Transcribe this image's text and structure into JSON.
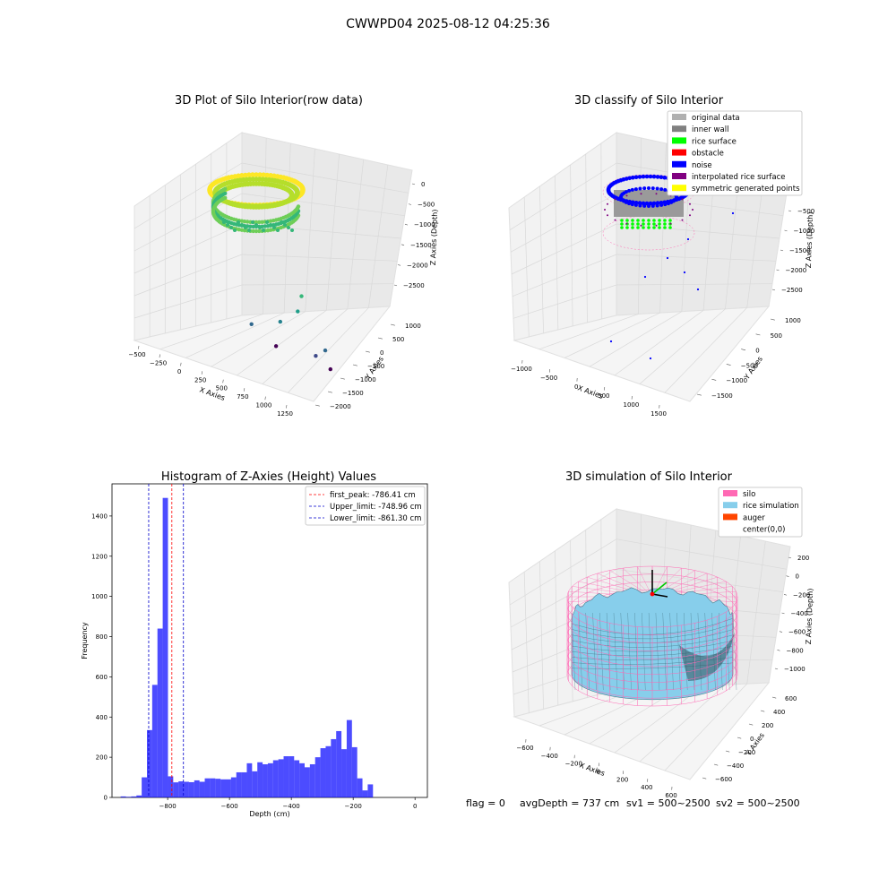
{
  "suptitle": "CWWPD04 2025-08-12 04:25:36",
  "footer": {
    "flag": "flag = 0",
    "avg_depth": "avgDepth = 737 cm",
    "sv1": "sv1 = 500~2500",
    "sv2": "sv2 = 500~2500"
  },
  "chart_data": [
    {
      "type": "scatter",
      "title": "3D Plot of Silo Interior(row data)",
      "xlabel": "X Axies",
      "ylabel": "Y Axies",
      "zlabel": "Z Axies (Depth)",
      "x_ticks": [
        "−500",
        "−250",
        "0",
        "250",
        "500",
        "750",
        "1000",
        "1250"
      ],
      "y_ticks": [
        "1000",
        "500",
        "0",
        "−500",
        "−1000",
        "−1500",
        "−2000"
      ],
      "z_ticks": [
        "0",
        "−500",
        "−1000",
        "−1500",
        "−2000",
        "−2500"
      ],
      "xlim": [
        -500,
        1350
      ],
      "ylim": [
        -2000,
        1200
      ],
      "zlim": [
        -2700,
        0
      ],
      "colormap": "viridis (by depth)",
      "outliers": [
        {
          "x": 1250,
          "y": 500,
          "z": -800
        },
        {
          "x": 1000,
          "y": 0,
          "z": -1300
        },
        {
          "x": 700,
          "y": -200,
          "z": -1700
        },
        {
          "x": 1100,
          "y": -600,
          "z": -2050
        },
        {
          "x": 900,
          "y": -800,
          "z": -2300
        },
        {
          "x": 300,
          "y": -300,
          "z": -2000
        },
        {
          "x": 200,
          "y": -1300,
          "z": -2600
        },
        {
          "x": 800,
          "y": -1500,
          "z": -2700
        }
      ]
    },
    {
      "type": "scatter",
      "title": "3D classify of Silo Interior",
      "xlabel": "X Axies",
      "ylabel": "Y Axies",
      "zlabel": "Z Axies (Depth)",
      "x_ticks": [
        "−1000",
        "−500",
        "0",
        "500",
        "1000",
        "1500"
      ],
      "y_ticks": [
        "1000",
        "500",
        "0",
        "−500",
        "−1000",
        "−1500"
      ],
      "z_ticks": [
        "−500",
        "−1000",
        "−1500",
        "−2000",
        "−2500"
      ],
      "xlim": [
        -1100,
        1700
      ],
      "ylim": [
        -1700,
        1200
      ],
      "zlim": [
        -2700,
        -200
      ],
      "legend_position": "upper-right",
      "legend": [
        {
          "label": "original data",
          "color": "#b0b0b0"
        },
        {
          "label": "inner wall",
          "color": "#808080"
        },
        {
          "label": "rice surface",
          "color": "#00ff00"
        },
        {
          "label": "obstacle",
          "color": "#ff0000"
        },
        {
          "label": "noise",
          "color": "#0000ff"
        },
        {
          "label": "interpolated rice surface",
          "color": "#800080"
        },
        {
          "label": "symmetric generated points",
          "color": "#ffff00"
        }
      ]
    },
    {
      "type": "bar",
      "title": "Histogram of Z-Axies (Height) Values",
      "xlabel": "Depth (cm)",
      "ylabel": "Frequency",
      "xlim": [
        -980,
        40
      ],
      "ylim": [
        0,
        1560
      ],
      "x_ticks": [
        -800,
        -600,
        -400,
        -200,
        0
      ],
      "y_ticks": [
        0,
        200,
        400,
        600,
        800,
        1000,
        1200,
        1400
      ],
      "bar_color": "#0000ff",
      "bin_width": 17,
      "bin_starts": [
        -952,
        -935,
        -918,
        -901,
        -884,
        -867,
        -850,
        -833,
        -816,
        -799,
        -782,
        -765,
        -748,
        -731,
        -714,
        -697,
        -680,
        -663,
        -646,
        -629,
        -612,
        -595,
        -578,
        -561,
        -544,
        -527,
        -510,
        -493,
        -476,
        -459,
        -442,
        -425,
        -408,
        -391,
        -374,
        -357,
        -340,
        -323,
        -306,
        -289,
        -272,
        -255,
        -238,
        -221,
        -204,
        -187,
        -170,
        -153,
        -136,
        -119,
        -102,
        -85,
        -68,
        -51,
        -34,
        -17
      ],
      "values": [
        5,
        3,
        5,
        10,
        100,
        335,
        560,
        840,
        1490,
        105,
        75,
        80,
        78,
        76,
        85,
        78,
        95,
        95,
        93,
        90,
        90,
        100,
        125,
        125,
        170,
        130,
        175,
        165,
        170,
        185,
        190,
        205,
        205,
        185,
        170,
        150,
        165,
        200,
        245,
        255,
        290,
        330,
        240,
        385,
        250,
        95,
        35,
        65,
        0,
        0,
        0,
        0,
        0,
        0,
        0,
        0
      ],
      "lines": [
        {
          "label": "first_peak: -786.41 cm",
          "x": -786.41,
          "color": "#ff0000"
        },
        {
          "label": "Upper_limit: -748.96 cm",
          "x": -748.96,
          "color": "#0000cc"
        },
        {
          "label": "Lower_limit: -861.30 cm",
          "x": -861.3,
          "color": "#0000cc"
        }
      ],
      "legend_position": "upper-right"
    },
    {
      "type": "area",
      "title": "3D simulation of Silo Interior",
      "xlabel": "X Axies",
      "ylabel": "Y Axies",
      "zlabel": "Z Axies (Depth)",
      "x_ticks": [
        "−600",
        "−400",
        "−200",
        "0",
        "200",
        "400",
        "600"
      ],
      "y_ticks": [
        "600",
        "400",
        "200",
        "0",
        "−200",
        "−400",
        "−600"
      ],
      "z_ticks": [
        "200",
        "0",
        "−200",
        "−400",
        "−600",
        "−800",
        "−1000"
      ],
      "xlim": [
        -700,
        700
      ],
      "ylim": [
        -700,
        700
      ],
      "zlim": [
        -1200,
        250
      ],
      "legend_position": "upper-right",
      "legend": [
        {
          "label": "silo",
          "color": "#ff69b4"
        },
        {
          "label": "rice simulation",
          "color": "#87ceeb"
        },
        {
          "label": "auger",
          "color": "#ff4500"
        },
        {
          "label": "center(0,0)",
          "color": "#ffffff"
        }
      ]
    }
  ]
}
